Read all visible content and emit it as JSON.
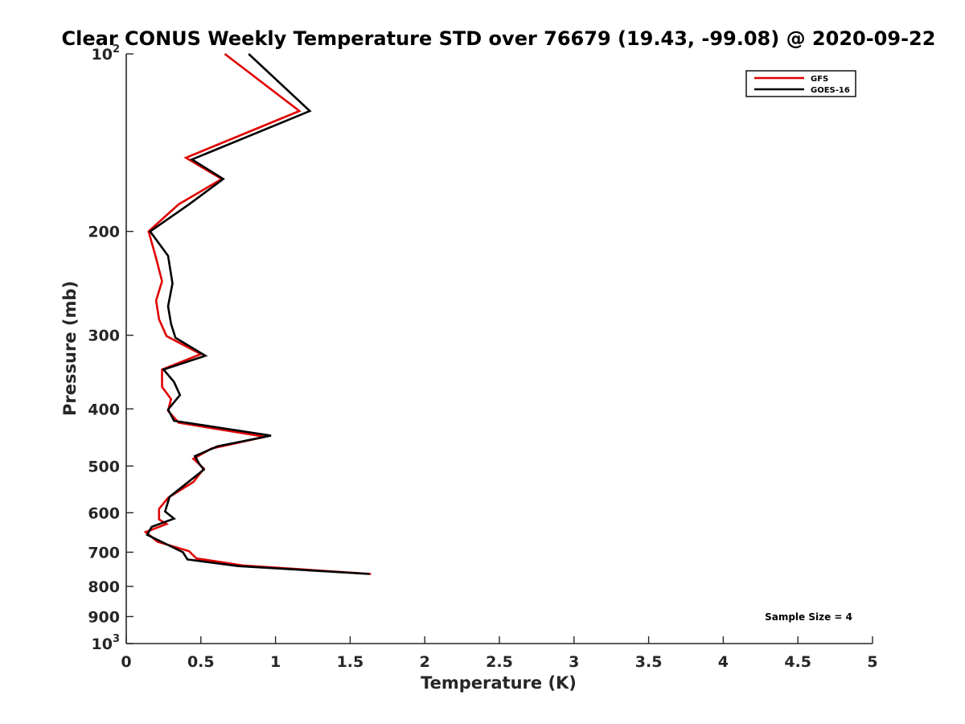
{
  "chart_data": {
    "type": "line",
    "title": "Clear CONUS Weekly Temperature STD over 76679 (19.43, -99.08) @ 2020-09-22",
    "xlabel": "Temperature (K)",
    "ylabel": "Pressure (mb)",
    "xlim": [
      0,
      5
    ],
    "ylim": [
      100,
      1000
    ],
    "y_scale": "log",
    "y_reversed": true,
    "x_ticks": [
      "0",
      "0.5",
      "1",
      "1.5",
      "2",
      "2.5",
      "3",
      "3.5",
      "4",
      "4.5",
      "5"
    ],
    "y_ticks": [
      {
        "value": 100,
        "base": "10",
        "exp": "2"
      },
      {
        "value": 200,
        "label": "200"
      },
      {
        "value": 300,
        "label": "300"
      },
      {
        "value": 400,
        "label": "400"
      },
      {
        "value": 500,
        "label": "500"
      },
      {
        "value": 600,
        "label": "600"
      },
      {
        "value": 700,
        "label": "700"
      },
      {
        "value": 800,
        "label": "800"
      },
      {
        "value": 900,
        "label": "900"
      },
      {
        "value": 1000,
        "base": "10",
        "exp": "3"
      }
    ],
    "grid": false,
    "legend_position": "top-right",
    "annotation": "Sample Size = 4",
    "series": [
      {
        "name": "GFS",
        "color": "#e00000",
        "points": [
          [
            0.66,
            100
          ],
          [
            1.16,
            125
          ],
          [
            0.4,
            150
          ],
          [
            0.64,
            163
          ],
          [
            0.35,
            180
          ],
          [
            0.15,
            200
          ],
          [
            0.2,
            222
          ],
          [
            0.24,
            243
          ],
          [
            0.2,
            262
          ],
          [
            0.22,
            282
          ],
          [
            0.27,
            301
          ],
          [
            0.5,
            323
          ],
          [
            0.24,
            343
          ],
          [
            0.24,
            367
          ],
          [
            0.3,
            385
          ],
          [
            0.28,
            403
          ],
          [
            0.35,
            422
          ],
          [
            0.93,
            446
          ],
          [
            0.57,
            467
          ],
          [
            0.45,
            486
          ],
          [
            0.52,
            505
          ],
          [
            0.45,
            532
          ],
          [
            0.28,
            566
          ],
          [
            0.22,
            591
          ],
          [
            0.22,
            616
          ],
          [
            0.27,
            627
          ],
          [
            0.13,
            647
          ],
          [
            0.21,
            672
          ],
          [
            0.42,
            697
          ],
          [
            0.47,
            717
          ],
          [
            0.78,
            737
          ],
          [
            1.64,
            762
          ]
        ]
      },
      {
        "name": "GOES-16",
        "color": "#000000",
        "points": [
          [
            0.82,
            100
          ],
          [
            1.23,
            125
          ],
          [
            0.44,
            151
          ],
          [
            0.65,
            163
          ],
          [
            0.42,
            180
          ],
          [
            0.16,
            200
          ],
          [
            0.28,
            220
          ],
          [
            0.31,
            245
          ],
          [
            0.28,
            268
          ],
          [
            0.3,
            287
          ],
          [
            0.33,
            303
          ],
          [
            0.53,
            325
          ],
          [
            0.25,
            343
          ],
          [
            0.32,
            360
          ],
          [
            0.36,
            379
          ],
          [
            0.28,
            401
          ],
          [
            0.32,
            419
          ],
          [
            0.97,
            444
          ],
          [
            0.61,
            463
          ],
          [
            0.46,
            481
          ],
          [
            0.49,
            496
          ],
          [
            0.52,
            507
          ],
          [
            0.29,
            564
          ],
          [
            0.26,
            597
          ],
          [
            0.32,
            614
          ],
          [
            0.17,
            634
          ],
          [
            0.14,
            654
          ],
          [
            0.38,
            700
          ],
          [
            0.41,
            720
          ],
          [
            0.75,
            739
          ],
          [
            1.63,
            762
          ]
        ]
      }
    ]
  }
}
